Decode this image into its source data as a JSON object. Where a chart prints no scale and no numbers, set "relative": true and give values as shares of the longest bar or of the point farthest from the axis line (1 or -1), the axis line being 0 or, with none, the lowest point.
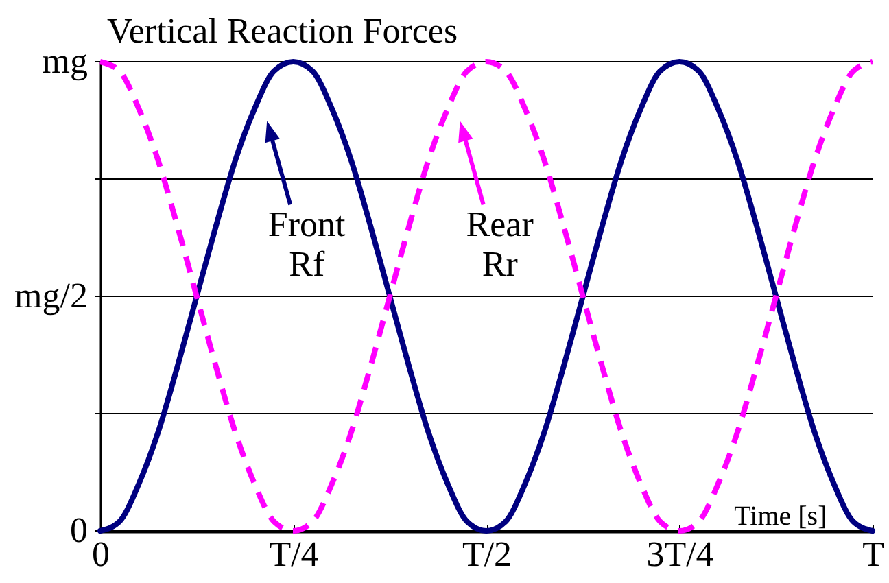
{
  "chart_data": {
    "type": "line",
    "title": "Vertical Reaction Forces",
    "xlabel": "Time [s]",
    "relative": true,
    "legend": "top left",
    "categories": [
      "0",
      null,
      null,
      null,
      null,
      null,
      null,
      null,
      null,
      null,
      "T/4",
      null,
      null,
      null,
      null,
      null,
      null,
      null,
      null,
      null,
      "T/2",
      null,
      null,
      null,
      null,
      null,
      null,
      null,
      null,
      null,
      "3T/4",
      null,
      null,
      null,
      null,
      null,
      null,
      null,
      null,
      null,
      "T"
    ],
    "series": [
      {
        "name": "Front Rf",
        "color": "#000080",
        "line_style": "solid",
        "values": [
          0,
          0.02,
          0.1,
          0.21,
          0.35,
          0.5,
          0.65,
          0.79,
          0.9,
          0.98,
          1,
          0.98,
          0.9,
          0.79,
          0.65,
          0.5,
          0.35,
          0.21,
          0.1,
          0.02,
          0,
          0.02,
          0.1,
          0.21,
          0.35,
          0.5,
          0.65,
          0.79,
          0.9,
          0.98,
          1,
          0.98,
          0.9,
          0.79,
          0.65,
          0.5,
          0.35,
          0.21,
          0.1,
          0.02,
          0
        ]
      },
      {
        "name": "Rear Rr",
        "color": "#ff00ff",
        "line_style": "dashed",
        "values": [
          1,
          0.98,
          0.9,
          0.79,
          0.65,
          0.5,
          0.35,
          0.21,
          0.1,
          0.02,
          0,
          0.02,
          0.1,
          0.21,
          0.35,
          0.5,
          0.65,
          0.79,
          0.9,
          0.98,
          1,
          0.98,
          0.9,
          0.79,
          0.65,
          0.5,
          0.35,
          0.21,
          0.1,
          0.02,
          0,
          0.02,
          0.1,
          0.21,
          0.35,
          0.5,
          0.65,
          0.79,
          0.9,
          0.98,
          1
        ]
      }
    ],
    "ref_lines": [
      {
        "axis": "y",
        "value": 0,
        "label": "0"
      },
      {
        "axis": "y",
        "value": 0.25
      },
      {
        "axis": "y",
        "value": 0.5,
        "label": "mg/2"
      },
      {
        "axis": "y",
        "value": 0.75
      },
      {
        "axis": "y",
        "value": 1,
        "label": "mg"
      }
    ]
  }
}
